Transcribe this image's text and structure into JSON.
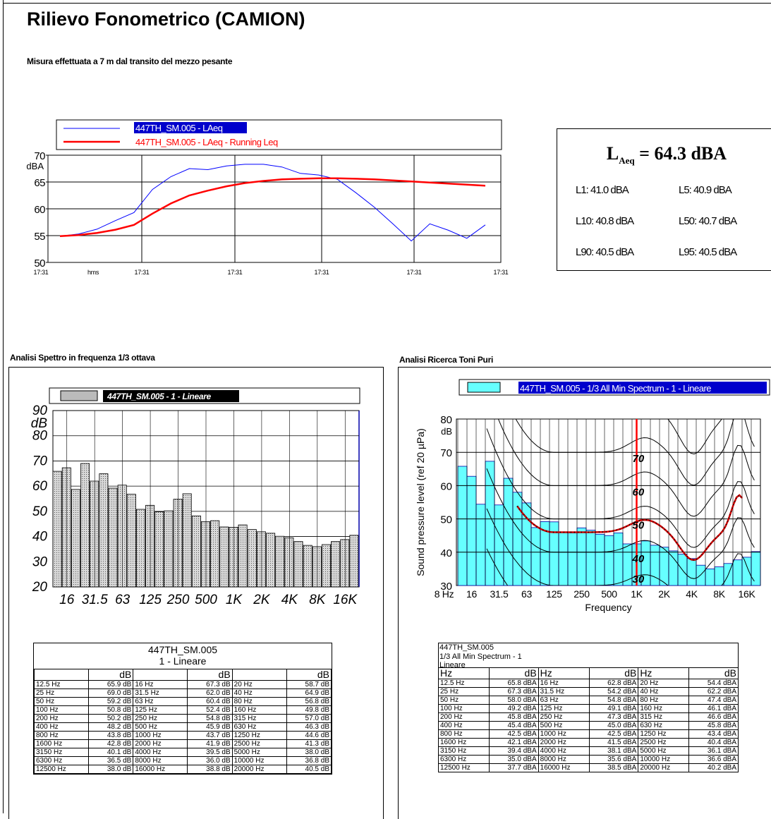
{
  "page": {
    "title": "Rilievo Fonometrico (CAMION)",
    "subtitle": "Misura effettuata a 7 m dal transito del mezzo pesante",
    "section_spectrum": "Analisi Spettro in frequenza 1/3 ottava",
    "section_tones": "Analisi Ricerca Toni Puri"
  },
  "leq_summary": {
    "main_prefix": "L",
    "main_sub": "Aeq",
    "main_value": " = 64.3 dBA",
    "l1": "L1: 41.0 dBA",
    "l5": "L5: 40.9 dBA",
    "l10": "L10: 40.8 dBA",
    "l50": "L50: 40.7 dBA",
    "l90": "L90: 40.5 dBA",
    "l95": "L95: 40.5 dBA"
  },
  "colors": {
    "laeq": "#0000ff",
    "running": "#ff0000",
    "bars_spectrum": "#c8c8c8",
    "bars_tones": "#66ffff",
    "highlight_bg": "#0000cc"
  },
  "chart_data": [
    {
      "type": "line",
      "legend": [
        "447TH_SM.005 - LAeq",
        "447TH_SM.005 - LAeq - Running Leq"
      ],
      "ylabel": "dBA",
      "ylim": [
        50,
        70
      ],
      "yticks": [
        "70",
        "65",
        "60",
        "55",
        "50"
      ],
      "xticks": [
        "17:31",
        "hms",
        "17:31",
        "17:31",
        "17:31",
        "17:31",
        "17:31"
      ],
      "series": [
        {
          "name": "447TH_SM.005 - LAeq",
          "values": [
            54.9,
            55.3,
            56.2,
            57.8,
            59.3,
            63.6,
            66.0,
            67.5,
            67.3,
            68.0,
            68.3,
            68.3,
            67.8,
            66.6,
            66.3,
            65.5,
            63.0,
            60.3,
            57.2,
            54.0,
            57.2,
            56.0,
            54.5,
            57.0
          ]
        },
        {
          "name": "447TH_SM.005 - LAeq - Running Leq",
          "values": [
            54.9,
            55.1,
            55.5,
            56.1,
            57.0,
            59.1,
            61.0,
            62.5,
            63.4,
            64.2,
            64.8,
            65.2,
            65.5,
            65.6,
            65.7,
            65.7,
            65.6,
            65.5,
            65.3,
            65.1,
            64.9,
            64.7,
            64.5,
            64.3
          ]
        }
      ]
    },
    {
      "type": "bar",
      "legend": "447TH_SM.005 - 1 - Lineare",
      "ylabel": "dB",
      "ylim": [
        20,
        90
      ],
      "yticks": [
        "90",
        "80",
        "70",
        "60",
        "50",
        "40",
        "30",
        "20"
      ],
      "xticks": [
        "16",
        "31.5",
        "63",
        "125",
        "250",
        "500",
        "1K",
        "2K",
        "4K",
        "8K",
        "16K"
      ],
      "categories": [
        "12.5 Hz",
        "16 Hz",
        "20 Hz",
        "25 Hz",
        "31.5 Hz",
        "40 Hz",
        "50 Hz",
        "63 Hz",
        "80 Hz",
        "100 Hz",
        "125 Hz",
        "160 Hz",
        "200 Hz",
        "250 Hz",
        "315 Hz",
        "400 Hz",
        "500 Hz",
        "630 Hz",
        "800 Hz",
        "1000 Hz",
        "1250 Hz",
        "1600 Hz",
        "2000 Hz",
        "2500 Hz",
        "3150 Hz",
        "4000 Hz",
        "5000 Hz",
        "6300 Hz",
        "8000 Hz",
        "10000 Hz",
        "12500 Hz",
        "16000 Hz",
        "20000 Hz"
      ],
      "values": [
        65.9,
        67.3,
        58.7,
        69.0,
        62.0,
        64.9,
        59.2,
        60.4,
        56.8,
        50.8,
        52.4,
        49.8,
        50.2,
        54.8,
        57.0,
        48.2,
        45.9,
        46.3,
        43.8,
        43.7,
        44.6,
        42.8,
        41.9,
        41.3,
        40.1,
        39.5,
        38.0,
        36.5,
        36.0,
        36.8,
        38.0,
        38.8,
        40.5
      ]
    },
    {
      "type": "bar",
      "legend": "447TH_SM.005 - 1/3 All Min Spectrum - 1 - Lineare",
      "ylabel": "Sound pressure level (ref 20 µPa)",
      "yunit": "dB",
      "xlabel": "Frequency",
      "ylim": [
        30,
        80
      ],
      "yticks": [
        "80",
        "70",
        "60",
        "50",
        "40",
        "30"
      ],
      "xticks": [
        "8 Hz",
        "16",
        "31.5",
        "63",
        "125",
        "250",
        "500",
        "1K",
        "2K",
        "4K",
        "8K",
        "16K"
      ],
      "curve_labels": [
        "70",
        "60",
        "50",
        "40",
        "30"
      ],
      "categories": [
        "12.5 Hz",
        "16 Hz",
        "20 Hz",
        "25 Hz",
        "31.5 Hz",
        "40 Hz",
        "50 Hz",
        "63 Hz",
        "80 Hz",
        "100 Hz",
        "125 Hz",
        "160 Hz",
        "200 Hz",
        "250 Hz",
        "315 Hz",
        "400 Hz",
        "500 Hz",
        "630 Hz",
        "800 Hz",
        "1000 Hz",
        "1250 Hz",
        "1600 Hz",
        "2000 Hz",
        "2500 Hz",
        "3150 Hz",
        "4000 Hz",
        "5000 Hz",
        "6300 Hz",
        "8000 Hz",
        "10000 Hz",
        "12500 Hz",
        "16000 Hz",
        "20000 Hz"
      ],
      "values": [
        65.8,
        62.8,
        54.4,
        67.3,
        54.2,
        62.2,
        58.0,
        54.8,
        47.4,
        49.2,
        49.1,
        46.1,
        45.8,
        47.3,
        46.6,
        45.4,
        45.0,
        45.8,
        42.5,
        42.5,
        43.4,
        42.1,
        41.5,
        40.4,
        39.4,
        38.1,
        36.1,
        35.0,
        35.6,
        36.6,
        37.7,
        38.5,
        40.2
      ]
    }
  ],
  "table_spectrum": {
    "title": "447TH_SM.005",
    "subtitle": "1 - Lineare",
    "headers": [
      "",
      "dB",
      "",
      "dB",
      "",
      "dB"
    ],
    "rows": [
      [
        "12.5 Hz",
        "65.9 dB",
        "16 Hz",
        "67.3 dB",
        "20 Hz",
        "58.7 dB"
      ],
      [
        "25 Hz",
        "69.0 dB",
        "31.5 Hz",
        "62.0 dB",
        "40 Hz",
        "64.9 dB"
      ],
      [
        "50 Hz",
        "59.2 dB",
        "63 Hz",
        "60.4 dB",
        "80 Hz",
        "56.8 dB"
      ],
      [
        "100 Hz",
        "50.8 dB",
        "125 Hz",
        "52.4 dB",
        "160 Hz",
        "49.8 dB"
      ],
      [
        "200 Hz",
        "50.2 dB",
        "250 Hz",
        "54.8 dB",
        "315 Hz",
        "57.0 dB"
      ],
      [
        "400 Hz",
        "48.2 dB",
        "500 Hz",
        "45.9 dB",
        "630 Hz",
        "46.3 dB"
      ],
      [
        "800 Hz",
        "43.8 dB",
        "1000 Hz",
        "43.7 dB",
        "1250 Hz",
        "44.6 dB"
      ],
      [
        "1600 Hz",
        "42.8 dB",
        "2000 Hz",
        "41.9 dB",
        "2500 Hz",
        "41.3 dB"
      ],
      [
        "3150 Hz",
        "40.1 dB",
        "4000 Hz",
        "39.5 dB",
        "5000 Hz",
        "38.0 dB"
      ],
      [
        "6300 Hz",
        "36.5 dB",
        "8000 Hz",
        "36.0 dB",
        "10000 Hz",
        "36.8 dB"
      ],
      [
        "12500 Hz",
        "38.0 dB",
        "16000 Hz",
        "38.8 dB",
        "20000 Hz",
        "40.5 dB"
      ]
    ]
  },
  "table_tones": {
    "title1": "447TH_SM.005",
    "title2": "1/3 All Min Spectrum - 1",
    "title3": "Lineare",
    "headers": [
      "Hz",
      "dB",
      "Hz",
      "dB",
      "Hz",
      "dB"
    ],
    "rows": [
      [
        "12.5 Hz",
        "65.8 dBA",
        "16 Hz",
        "62.8 dBA",
        "20 Hz",
        "54.4 dBA"
      ],
      [
        "25 Hz",
        "67.3 dBA",
        "31.5 Hz",
        "54.2 dBA",
        "40 Hz",
        "62.2 dBA"
      ],
      [
        "50 Hz",
        "58.0 dBA",
        "63 Hz",
        "54.8 dBA",
        "80 Hz",
        "47.4 dBA"
      ],
      [
        "100 Hz",
        "49.2 dBA",
        "125 Hz",
        "49.1 dBA",
        "160 Hz",
        "46.1 dBA"
      ],
      [
        "200 Hz",
        "45.8 dBA",
        "250 Hz",
        "47.3 dBA",
        "315 Hz",
        "46.6 dBA"
      ],
      [
        "400 Hz",
        "45.4 dBA",
        "500 Hz",
        "45.0 dBA",
        "630 Hz",
        "45.8 dBA"
      ],
      [
        "800 Hz",
        "42.5 dBA",
        "1000 Hz",
        "42.5 dBA",
        "1250 Hz",
        "43.4 dBA"
      ],
      [
        "1600 Hz",
        "42.1 dBA",
        "2000 Hz",
        "41.5 dBA",
        "2500 Hz",
        "40.4 dBA"
      ],
      [
        "3150 Hz",
        "39.4 dBA",
        "4000 Hz",
        "38.1 dBA",
        "5000 Hz",
        "36.1 dBA"
      ],
      [
        "6300 Hz",
        "35.0 dBA",
        "8000 Hz",
        "35.6 dBA",
        "10000 Hz",
        "36.6 dBA"
      ],
      [
        "12500 Hz",
        "37.7 dBA",
        "16000 Hz",
        "38.5 dBA",
        "20000 Hz",
        "40.2 dBA"
      ]
    ]
  }
}
